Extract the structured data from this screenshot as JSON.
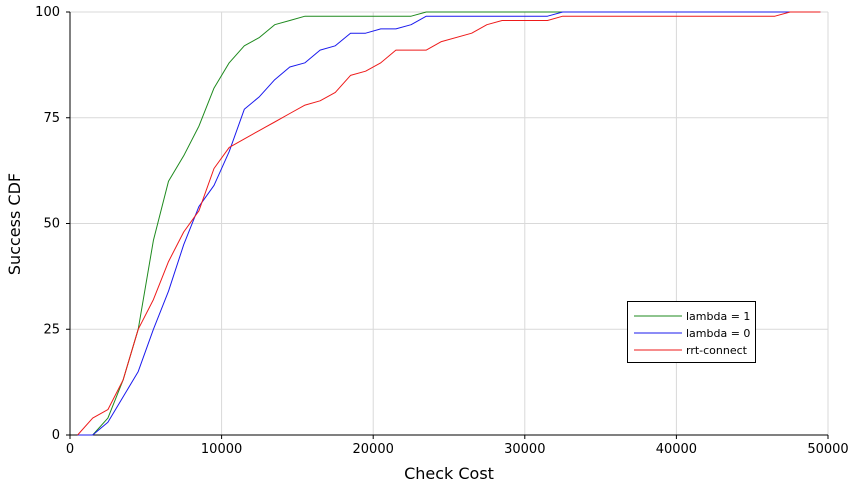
{
  "chart_data": {
    "type": "line",
    "xlabel": "Check Cost",
    "ylabel": "Success CDF",
    "xlim": [
      0,
      50000
    ],
    "ylim": [
      0,
      100
    ],
    "xticks": [
      0,
      10000,
      20000,
      30000,
      40000,
      50000
    ],
    "yticks": [
      0,
      25,
      50,
      75,
      100
    ],
    "xtick_labels": [
      "0",
      "10000",
      "20000",
      "30000",
      "40000",
      "50000"
    ],
    "ytick_labels": [
      "0",
      "25",
      "50",
      "75",
      "100"
    ],
    "grid": true,
    "legend_position": "lower-right",
    "series": [
      {
        "name": "lambda = 1",
        "color": "#1e8a1e",
        "points": [
          [
            500,
            0
          ],
          [
            1500,
            0
          ],
          [
            2500,
            4
          ],
          [
            3500,
            13
          ],
          [
            4500,
            25
          ],
          [
            5500,
            46
          ],
          [
            6500,
            60
          ],
          [
            7500,
            66
          ],
          [
            8500,
            73
          ],
          [
            9500,
            82
          ],
          [
            10500,
            88
          ],
          [
            11500,
            92
          ],
          [
            12500,
            94
          ],
          [
            13500,
            97
          ],
          [
            14500,
            98
          ],
          [
            15500,
            99
          ],
          [
            16500,
            99
          ],
          [
            20500,
            99
          ],
          [
            22500,
            99
          ],
          [
            23500,
            100
          ],
          [
            32500,
            100
          ],
          [
            49500,
            100
          ]
        ]
      },
      {
        "name": "lambda = 0",
        "color": "#1a1aee",
        "points": [
          [
            500,
            0
          ],
          [
            1500,
            0
          ],
          [
            2500,
            3
          ],
          [
            3500,
            9
          ],
          [
            4500,
            15
          ],
          [
            5500,
            25
          ],
          [
            6500,
            34
          ],
          [
            7500,
            45
          ],
          [
            8500,
            54
          ],
          [
            9500,
            59
          ],
          [
            10500,
            67
          ],
          [
            11500,
            77
          ],
          [
            12500,
            80
          ],
          [
            13500,
            84
          ],
          [
            14500,
            87
          ],
          [
            15500,
            88
          ],
          [
            16500,
            91
          ],
          [
            17500,
            92
          ],
          [
            18500,
            95
          ],
          [
            19500,
            95
          ],
          [
            20500,
            96
          ],
          [
            21500,
            96
          ],
          [
            22500,
            97
          ],
          [
            23500,
            99
          ],
          [
            31500,
            99
          ],
          [
            32500,
            100
          ],
          [
            49500,
            100
          ]
        ]
      },
      {
        "name": "rrt-connect",
        "color": "#ee1a1a",
        "points": [
          [
            500,
            0
          ],
          [
            1500,
            4
          ],
          [
            2500,
            6
          ],
          [
            3500,
            13
          ],
          [
            4500,
            25
          ],
          [
            5500,
            32
          ],
          [
            6500,
            41
          ],
          [
            7500,
            48
          ],
          [
            8500,
            53
          ],
          [
            9500,
            63
          ],
          [
            10500,
            68
          ],
          [
            11500,
            70
          ],
          [
            12500,
            72
          ],
          [
            13500,
            74
          ],
          [
            14500,
            76
          ],
          [
            15500,
            78
          ],
          [
            16500,
            79
          ],
          [
            17500,
            81
          ],
          [
            18500,
            85
          ],
          [
            19500,
            86
          ],
          [
            20500,
            88
          ],
          [
            21500,
            91
          ],
          [
            22500,
            91
          ],
          [
            23500,
            91
          ],
          [
            24500,
            93
          ],
          [
            26500,
            95
          ],
          [
            27500,
            97
          ],
          [
            28500,
            98
          ],
          [
            31500,
            98
          ],
          [
            32500,
            99
          ],
          [
            46500,
            99
          ],
          [
            47500,
            100
          ],
          [
            49500,
            100
          ]
        ]
      }
    ]
  }
}
